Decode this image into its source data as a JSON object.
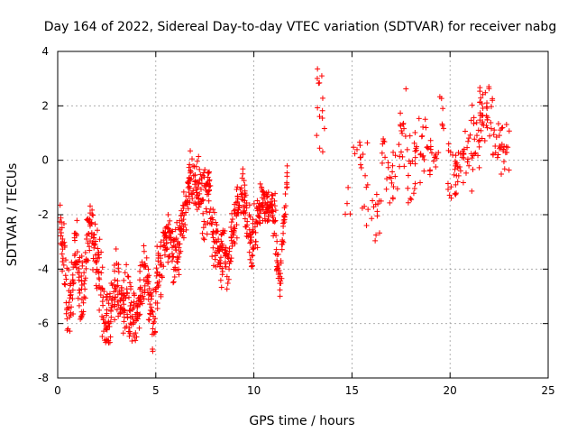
{
  "chart_data": {
    "type": "scatter",
    "title": "Day 164 of 2022, Sidereal Day-to-day VTEC variation (SDTVAR) for receiver nabg",
    "xlabel": "GPS time / hours",
    "ylabel": "SDTVAR / TECUs",
    "xlim": [
      0,
      25
    ],
    "ylim": [
      -8,
      4
    ],
    "x_ticks": [
      0,
      5,
      10,
      15,
      20,
      25
    ],
    "y_ticks": [
      -8,
      -6,
      -4,
      -2,
      0,
      2,
      4
    ],
    "x_tick_labels": [
      "0",
      "5",
      "10",
      "15",
      "20",
      "25"
    ],
    "y_tick_labels": [
      "-8",
      "-6",
      "-4",
      "-2",
      "0",
      "2",
      "4"
    ],
    "grid": true,
    "marker": "+",
    "marker_color": "#ff0000",
    "series": [
      {
        "name": "SDTVAR",
        "profile": [
          [
            0.1,
            -2.0,
            0.6
          ],
          [
            0.3,
            -3.8,
            1.2
          ],
          [
            0.5,
            -5.6,
            1.0
          ],
          [
            0.7,
            -5.0,
            1.0
          ],
          [
            0.9,
            -3.5,
            1.0
          ],
          [
            1.1,
            -4.3,
            1.0
          ],
          [
            1.3,
            -5.2,
            1.1
          ],
          [
            1.5,
            -3.2,
            1.0
          ],
          [
            1.7,
            -2.0,
            0.9
          ],
          [
            1.9,
            -3.2,
            1.0
          ],
          [
            2.1,
            -4.2,
            1.0
          ],
          [
            2.3,
            -5.2,
            1.2
          ],
          [
            2.5,
            -6.0,
            0.9
          ],
          [
            2.7,
            -5.5,
            0.9
          ],
          [
            2.9,
            -4.8,
            0.8
          ],
          [
            3.1,
            -4.6,
            0.9
          ],
          [
            3.3,
            -5.3,
            0.8
          ],
          [
            3.5,
            -5.1,
            1.0
          ],
          [
            3.7,
            -5.8,
            1.0
          ],
          [
            3.9,
            -5.6,
            0.9
          ],
          [
            4.1,
            -5.8,
            0.9
          ],
          [
            4.3,
            -4.5,
            1.0
          ],
          [
            4.5,
            -3.9,
            0.8
          ],
          [
            4.7,
            -5.3,
            1.0
          ],
          [
            4.9,
            -5.9,
            0.8
          ],
          [
            5.1,
            -4.3,
            0.9
          ],
          [
            5.3,
            -3.7,
            0.8
          ],
          [
            5.5,
            -2.6,
            0.8
          ],
          [
            5.7,
            -2.8,
            0.6
          ],
          [
            5.9,
            -3.6,
            0.8
          ],
          [
            6.1,
            -3.2,
            0.8
          ],
          [
            6.3,
            -2.8,
            0.7
          ],
          [
            6.5,
            -1.8,
            0.9
          ],
          [
            6.7,
            -0.8,
            0.8
          ],
          [
            6.9,
            -0.6,
            0.8
          ],
          [
            7.1,
            -0.8,
            0.8
          ],
          [
            7.3,
            -1.2,
            0.8
          ],
          [
            7.5,
            -1.6,
            1.1
          ],
          [
            7.7,
            -1.3,
            0.9
          ],
          [
            7.9,
            -2.8,
            0.8
          ],
          [
            8.1,
            -2.8,
            0.8
          ],
          [
            8.3,
            -3.6,
            0.8
          ],
          [
            8.5,
            -3.0,
            0.7
          ],
          [
            8.7,
            -4.1,
            0.8
          ],
          [
            8.9,
            -2.8,
            0.7
          ],
          [
            9.1,
            -2.0,
            0.8
          ],
          [
            9.3,
            -1.3,
            0.8
          ],
          [
            9.5,
            -1.2,
            0.9
          ],
          [
            9.7,
            -2.3,
            0.7
          ],
          [
            9.9,
            -3.4,
            0.8
          ],
          [
            10.1,
            -2.5,
            0.8
          ],
          [
            10.3,
            -1.6,
            0.6
          ],
          [
            10.5,
            -1.5,
            0.5
          ],
          [
            10.7,
            -1.8,
            0.5
          ],
          [
            10.9,
            -1.6,
            0.5
          ],
          [
            11.1,
            -2.4,
            0.9
          ],
          [
            11.3,
            -4.9,
            0.7
          ],
          [
            11.5,
            -2.5,
            0.6
          ],
          [
            11.7,
            -0.5,
            0.4
          ]
        ]
      }
    ]
  }
}
